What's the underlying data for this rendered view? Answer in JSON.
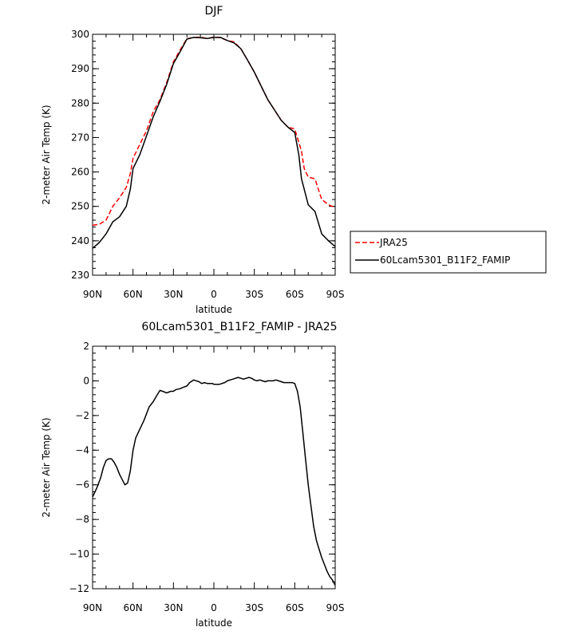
{
  "chart_data": [
    {
      "type": "line",
      "title": "DJF",
      "xlabel": "latitude",
      "ylabel": "2-meter Air Temp (K)",
      "xlim": [
        90,
        -90
      ],
      "ylim": [
        230,
        300
      ],
      "xticks": [
        {
          "value": 90,
          "label": "90N"
        },
        {
          "value": 60,
          "label": "60N"
        },
        {
          "value": 30,
          "label": "30N"
        },
        {
          "value": 0,
          "label": "0"
        },
        {
          "value": -30,
          "label": "30S"
        },
        {
          "value": -60,
          "label": "60S"
        },
        {
          "value": -90,
          "label": "90S"
        }
      ],
      "yticks": [
        {
          "value": 230,
          "label": "230"
        },
        {
          "value": 240,
          "label": "240"
        },
        {
          "value": 250,
          "label": "250"
        },
        {
          "value": 260,
          "label": "260"
        },
        {
          "value": 270,
          "label": "270"
        },
        {
          "value": 280,
          "label": "280"
        },
        {
          "value": 290,
          "label": "290"
        },
        {
          "value": 300,
          "label": "300"
        }
      ],
      "legend_position": "right",
      "series": [
        {
          "name": "JRA25",
          "color": "#ff0000",
          "dash": "dashed",
          "x": [
            90,
            85,
            80,
            75,
            70,
            65,
            62,
            60,
            55,
            50,
            45,
            40,
            35,
            30,
            25,
            20,
            15,
            10,
            5,
            0,
            -5,
            -10,
            -15,
            -20,
            -25,
            -30,
            -35,
            -40,
            -45,
            -50,
            -55,
            -60,
            -65,
            -67,
            -70,
            -75,
            -80,
            -85,
            -88,
            -90
          ],
          "y": [
            244.5,
            244.8,
            246,
            250,
            252.5,
            255.5,
            259.5,
            264,
            268,
            272,
            277.5,
            281,
            286,
            292,
            295.5,
            298.7,
            299.1,
            299.2,
            298.8,
            299.2,
            299,
            298.2,
            297.8,
            295.8,
            292.5,
            289,
            285,
            281,
            278,
            275,
            273,
            272.5,
            266,
            261,
            258.5,
            258,
            252,
            250.5,
            250,
            249.8
          ]
        },
        {
          "name": "60Lcam5301_B11F2_FAMIP",
          "color": "#000000",
          "dash": "solid",
          "x": [
            90,
            85,
            80,
            75,
            70,
            65,
            62,
            60,
            55,
            50,
            45,
            40,
            35,
            30,
            25,
            20,
            15,
            10,
            5,
            0,
            -5,
            -10,
            -15,
            -20,
            -25,
            -30,
            -35,
            -40,
            -45,
            -50,
            -55,
            -60,
            -63,
            -65,
            -70,
            -75,
            -80,
            -85,
            -88,
            -90
          ],
          "y": [
            237.8,
            239.5,
            242,
            245.5,
            247,
            250,
            255,
            261,
            265,
            270.5,
            276,
            280.5,
            285.5,
            291.5,
            295,
            298.6,
            299.1,
            299,
            298.8,
            299.1,
            299.1,
            298.2,
            297.5,
            295.8,
            292.5,
            289,
            285,
            281,
            278,
            275,
            273,
            271.5,
            265,
            258,
            250.5,
            248.5,
            242,
            240,
            239,
            238.3
          ]
        }
      ]
    },
    {
      "type": "line",
      "title": "60Lcam5301_B11F2_FAMIP - JRA25",
      "xlabel": "latitude",
      "ylabel": "2-meter Air Temp (K)",
      "xlim": [
        90,
        -90
      ],
      "ylim": [
        -12,
        2
      ],
      "xticks": [
        {
          "value": 90,
          "label": "90N"
        },
        {
          "value": 60,
          "label": "60N"
        },
        {
          "value": 30,
          "label": "30N"
        },
        {
          "value": 0,
          "label": "0"
        },
        {
          "value": -30,
          "label": "30S"
        },
        {
          "value": -60,
          "label": "60S"
        },
        {
          "value": -90,
          "label": "90S"
        }
      ],
      "yticks": [
        {
          "value": -12,
          "label": "−12"
        },
        {
          "value": -10,
          "label": "−10"
        },
        {
          "value": -8,
          "label": "−8"
        },
        {
          "value": -6,
          "label": "−6"
        },
        {
          "value": -4,
          "label": "−4"
        },
        {
          "value": -2,
          "label": "−2"
        },
        {
          "value": 0,
          "label": "0"
        },
        {
          "value": 2,
          "label": "2"
        }
      ],
      "series": [
        {
          "name": "",
          "color": "#000000",
          "dash": "solid",
          "x": [
            90,
            87,
            84,
            82,
            80,
            78,
            76,
            74,
            72,
            70,
            68,
            66,
            64,
            62,
            60,
            58,
            55,
            52,
            50,
            48,
            45,
            42,
            40,
            38,
            35,
            32,
            30,
            28,
            25,
            22,
            20,
            18,
            16,
            15,
            13,
            11,
            9,
            7,
            5,
            3,
            1,
            0,
            -2,
            -4,
            -6,
            -8,
            -10,
            -12,
            -14,
            -16,
            -18,
            -20,
            -22,
            -24,
            -26,
            -28,
            -30,
            -32,
            -34,
            -36,
            -38,
            -40,
            -42,
            -44,
            -46,
            -48,
            -50,
            -52,
            -54,
            -56,
            -58,
            -60,
            -62,
            -64,
            -66,
            -68,
            -70,
            -72,
            -74,
            -76,
            -78,
            -80,
            -82,
            -84,
            -86,
            -88,
            -90
          ],
          "y": [
            -6.7,
            -6.2,
            -5.6,
            -5.0,
            -4.6,
            -4.5,
            -4.5,
            -4.7,
            -5.0,
            -5.4,
            -5.7,
            -6.0,
            -5.9,
            -5.2,
            -4.0,
            -3.3,
            -2.8,
            -2.3,
            -1.9,
            -1.5,
            -1.2,
            -0.8,
            -0.55,
            -0.6,
            -0.7,
            -0.6,
            -0.6,
            -0.5,
            -0.45,
            -0.35,
            -0.3,
            -0.1,
            0.0,
            0.05,
            0.0,
            -0.05,
            -0.15,
            -0.1,
            -0.15,
            -0.15,
            -0.15,
            -0.2,
            -0.2,
            -0.2,
            -0.15,
            -0.1,
            0.0,
            0.05,
            0.1,
            0.15,
            0.2,
            0.15,
            0.1,
            0.15,
            0.2,
            0.15,
            0.05,
            0.0,
            0.05,
            0.0,
            -0.05,
            0.0,
            0.0,
            0.0,
            0.05,
            0.0,
            -0.05,
            -0.1,
            -0.1,
            -0.1,
            -0.1,
            -0.15,
            -0.6,
            -1.5,
            -3.0,
            -4.5,
            -6.0,
            -7.2,
            -8.4,
            -9.2,
            -9.7,
            -10.2,
            -10.6,
            -11.0,
            -11.3,
            -11.5,
            -11.8
          ]
        }
      ]
    }
  ]
}
